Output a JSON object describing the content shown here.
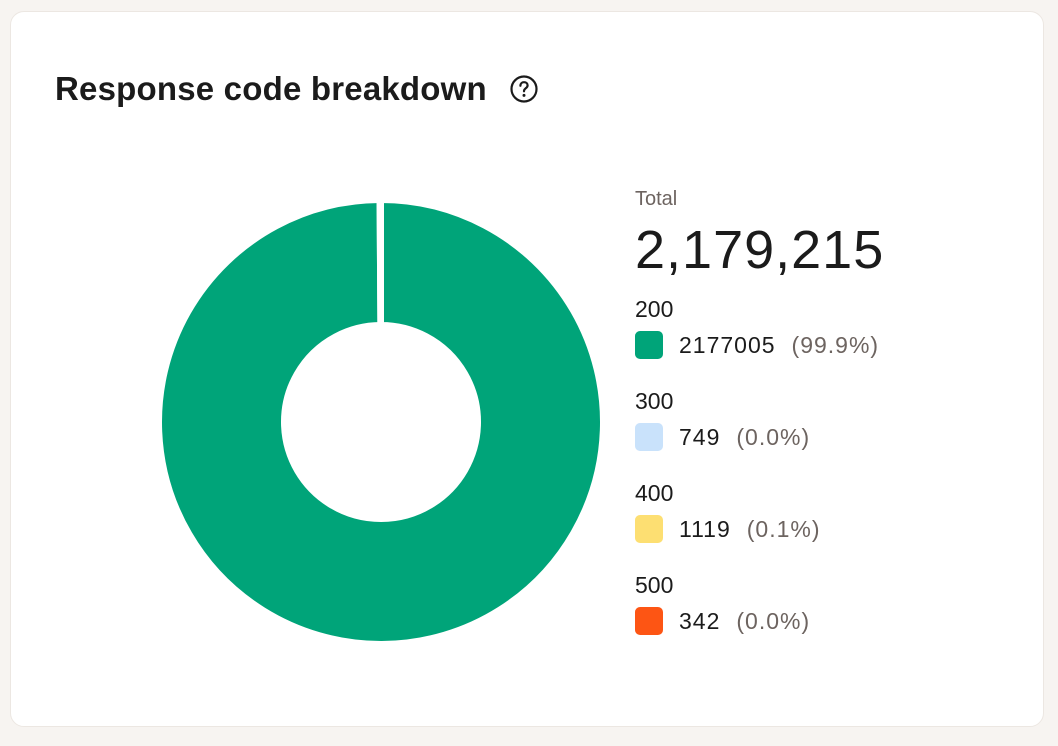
{
  "chart_data": {
    "type": "pie",
    "title": "Response code breakdown",
    "total_label": "Total",
    "total_value": "2,179,215",
    "categories": [
      "200",
      "300",
      "400",
      "500"
    ],
    "values": [
      2177005,
      749,
      1119,
      342
    ],
    "percent_labels": [
      "(99.9%)",
      "(0.0%)",
      "(0.1%)",
      "(0.0%)"
    ],
    "colors": [
      "#00a479",
      "#c9e2fb",
      "#fddf72",
      "#fd5514"
    ],
    "legend_position": "right"
  },
  "icons": {
    "help": "question-circle-icon"
  }
}
